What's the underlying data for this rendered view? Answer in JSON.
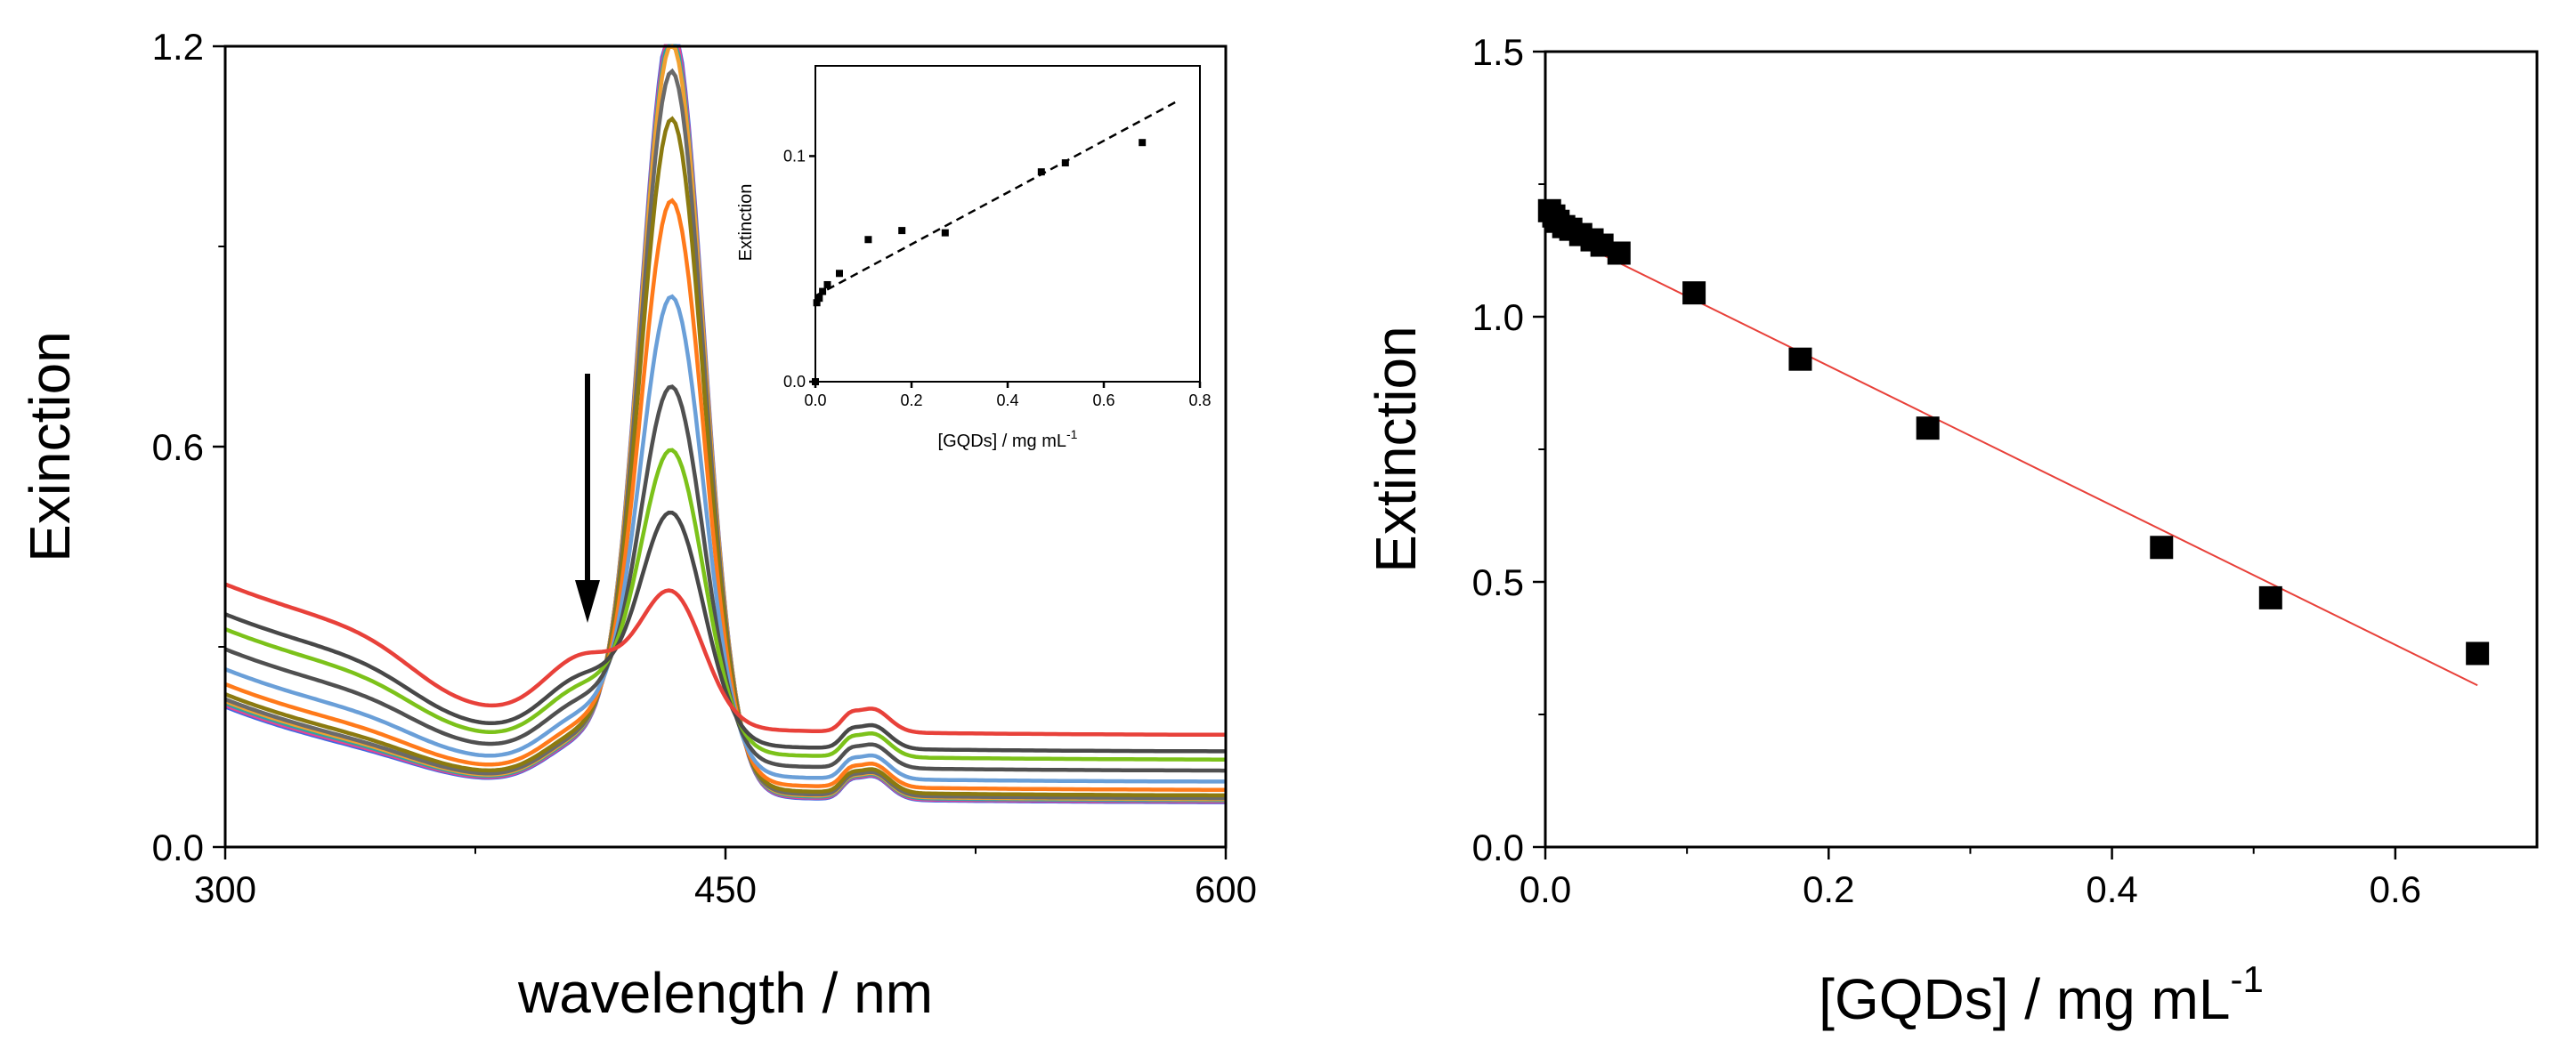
{
  "chart_data": [
    {
      "type": "line",
      "xlabel": "wavelength / nm",
      "ylabel": "Exinction",
      "xlim": [
        300,
        600
      ],
      "ylim": [
        0,
        1.2
      ],
      "xticks": [
        300,
        450,
        600
      ],
      "yticks": [
        0.0,
        0.6,
        1.2
      ],
      "xtick_labels": [
        "300",
        "450",
        "600"
      ],
      "ytick_labels": [
        "0.0",
        "0.6",
        "1.2"
      ],
      "annotation": "downward arrow indicating decreasing peak extinction",
      "series": [
        {
          "color": "#4169e1",
          "peak": 1.19,
          "base300": 0.075
        },
        {
          "color": "#e84393",
          "peak": 1.18,
          "base300": 0.078
        },
        {
          "color": "#2ca6a4",
          "peak": 1.17,
          "base300": 0.082
        },
        {
          "color": "#f0a030",
          "peak": 1.16,
          "base300": 0.086
        },
        {
          "color": "#6a6a6a",
          "peak": 1.12,
          "base300": 0.09
        },
        {
          "color": "#8b7a10",
          "peak": 1.05,
          "base300": 0.1
        },
        {
          "color": "#ff7a1a",
          "peak": 0.93,
          "base300": 0.12
        },
        {
          "color": "#6a9fd8",
          "peak": 0.79,
          "base300": 0.15
        },
        {
          "color": "#505050",
          "peak": 0.66,
          "base300": 0.19
        },
        {
          "color": "#7cc21a",
          "peak": 0.57,
          "base300": 0.23
        },
        {
          "color": "#484848",
          "peak": 0.48,
          "base300": 0.26
        },
        {
          "color": "#e8413a",
          "peak": 0.37,
          "base300": 0.32
        }
      ],
      "inset": {
        "type": "scatter",
        "xlabel": "[GQDs] / mg mL",
        "xlabel_sup": "-1",
        "ylabel": "Extinction",
        "xlim": [
          0,
          0.8
        ],
        "ylim": [
          0,
          0.14
        ],
        "xticks": [
          0.0,
          0.2,
          0.4,
          0.6,
          0.8
        ],
        "yticks": [
          0.0,
          0.1
        ],
        "xtick_labels": [
          "0.0",
          "0.2",
          "0.4",
          "0.6",
          "0.8"
        ],
        "ytick_labels": [
          "0.0",
          "0.1"
        ],
        "points": [
          [
            0.0,
            0.0
          ],
          [
            0.003,
            0.035
          ],
          [
            0.008,
            0.037
          ],
          [
            0.015,
            0.04
          ],
          [
            0.025,
            0.043
          ],
          [
            0.05,
            0.048
          ],
          [
            0.11,
            0.063
          ],
          [
            0.18,
            0.067
          ],
          [
            0.27,
            0.066
          ],
          [
            0.47,
            0.093
          ],
          [
            0.52,
            0.097
          ],
          [
            0.68,
            0.106
          ]
        ],
        "fit": {
          "style": "dashed",
          "x": [
            0.0,
            0.75
          ],
          "y": [
            0.038,
            0.124
          ]
        }
      }
    },
    {
      "type": "scatter",
      "xlabel": "[GQDs] / mg mL",
      "xlabel_sup": "-1",
      "ylabel": "Extinction",
      "xlim": [
        0,
        0.7
      ],
      "ylim": [
        0,
        1.5
      ],
      "xticks": [
        0.0,
        0.2,
        0.4,
        0.6
      ],
      "yticks": [
        0.0,
        0.5,
        1.0,
        1.5
      ],
      "xtick_labels": [
        "0.0",
        "0.2",
        "0.4",
        "0.6"
      ],
      "ytick_labels": [
        "0.0",
        "0.5",
        "1.0",
        "1.5"
      ],
      "points": [
        [
          0.003,
          1.2
        ],
        [
          0.006,
          1.19
        ],
        [
          0.009,
          1.18
        ],
        [
          0.013,
          1.17
        ],
        [
          0.018,
          1.165
        ],
        [
          0.025,
          1.155
        ],
        [
          0.033,
          1.145
        ],
        [
          0.04,
          1.135
        ],
        [
          0.052,
          1.12
        ],
        [
          0.105,
          1.045
        ],
        [
          0.18,
          0.92
        ],
        [
          0.27,
          0.79
        ],
        [
          0.435,
          0.565
        ],
        [
          0.512,
          0.47
        ],
        [
          0.658,
          0.365
        ]
      ],
      "fit": {
        "color": "#e8413a",
        "x": [
          0.0,
          0.658
        ],
        "y": [
          1.17,
          0.305
        ]
      }
    }
  ]
}
